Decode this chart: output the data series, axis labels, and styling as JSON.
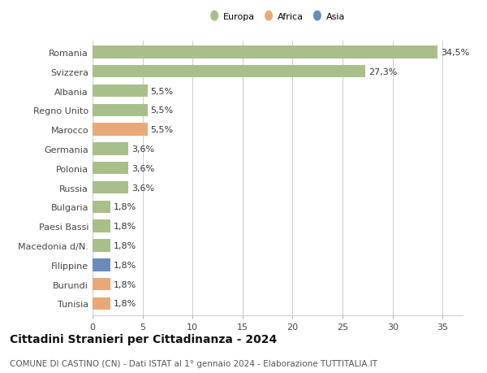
{
  "categories": [
    "Tunisia",
    "Burundi",
    "Filippine",
    "Macedonia d/N.",
    "Paesi Bassi",
    "Bulgaria",
    "Russia",
    "Polonia",
    "Germania",
    "Marocco",
    "Regno Unito",
    "Albania",
    "Svizzera",
    "Romania"
  ],
  "values": [
    1.8,
    1.8,
    1.8,
    1.8,
    1.8,
    1.8,
    3.6,
    3.6,
    3.6,
    5.5,
    5.5,
    5.5,
    27.3,
    34.5
  ],
  "labels": [
    "1,8%",
    "1,8%",
    "1,8%",
    "1,8%",
    "1,8%",
    "1,8%",
    "3,6%",
    "3,6%",
    "3,6%",
    "5,5%",
    "5,5%",
    "5,5%",
    "27,3%",
    "34,5%"
  ],
  "colors": [
    "#e8a878",
    "#e8a878",
    "#6b8cba",
    "#a8bf8a",
    "#a8bf8a",
    "#a8bf8a",
    "#a8bf8a",
    "#a8bf8a",
    "#a8bf8a",
    "#e8a878",
    "#a8bf8a",
    "#a8bf8a",
    "#a8bf8a",
    "#a8bf8a"
  ],
  "continent": [
    "Africa",
    "Africa",
    "Asia",
    "Europa",
    "Europa",
    "Europa",
    "Europa",
    "Europa",
    "Europa",
    "Africa",
    "Europa",
    "Europa",
    "Europa",
    "Europa"
  ],
  "europa_color": "#a8bf8a",
  "africa_color": "#e8a878",
  "asia_color": "#6b8cba",
  "title": "Cittadini Stranieri per Cittadinanza - 2024",
  "subtitle": "COMUNE DI CASTINO (CN) - Dati ISTAT al 1° gennaio 2024 - Elaborazione TUTTITALIA.IT",
  "xlim": [
    0,
    37
  ],
  "xticks": [
    0,
    5,
    10,
    15,
    20,
    25,
    30,
    35
  ],
  "background_color": "#ffffff",
  "grid_color": "#cccccc",
  "bar_height": 0.65,
  "label_fontsize": 8,
  "tick_fontsize": 8,
  "title_fontsize": 10,
  "subtitle_fontsize": 7.5
}
